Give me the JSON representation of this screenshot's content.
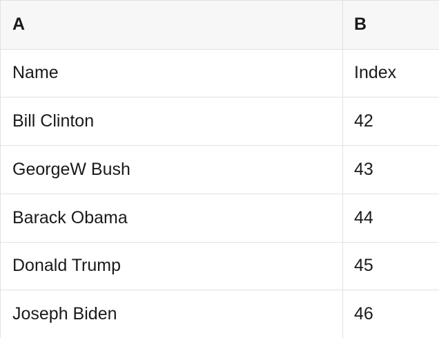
{
  "app": {
    "kind": "spreadsheet-table-view"
  },
  "table": {
    "column_headers": [
      "A",
      "B"
    ],
    "rows": [
      {
        "a": "Name",
        "b": "Index"
      },
      {
        "a": "Bill Clinton",
        "b": "42"
      },
      {
        "a": "GeorgeW Bush",
        "b": "43"
      },
      {
        "a": "Barack Obama",
        "b": "44"
      },
      {
        "a": "Donald Trump",
        "b": "45"
      },
      {
        "a": "Joseph Biden",
        "b": "46"
      }
    ]
  },
  "colors": {
    "header_bg": "#f7f7f7",
    "grid_border": "#e1e1e1",
    "text": "#1a1a1a",
    "cell_bg": "#ffffff"
  }
}
